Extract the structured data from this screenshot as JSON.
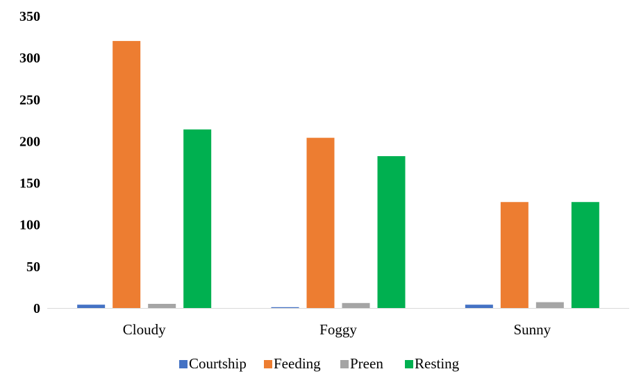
{
  "chart_data": {
    "type": "bar",
    "categories": [
      "Cloudy",
      "Foggy",
      "Sunny"
    ],
    "series": [
      {
        "name": "Courtship",
        "color": "#4472C4",
        "values": [
          4,
          1,
          4
        ]
      },
      {
        "name": "Feeding",
        "color": "#ED7D31",
        "values": [
          320,
          204,
          127
        ]
      },
      {
        "name": "Preen",
        "color": "#A5A5A5",
        "values": [
          5,
          6,
          7
        ]
      },
      {
        "name": "Resting",
        "color": "#00B050",
        "values": [
          214,
          182,
          127
        ]
      }
    ],
    "yticks": [
      "0",
      "50",
      "100",
      "150",
      "200",
      "250",
      "300",
      "350"
    ],
    "ylim": [
      0,
      350
    ],
    "grid": false,
    "legend_position": "bottom"
  }
}
